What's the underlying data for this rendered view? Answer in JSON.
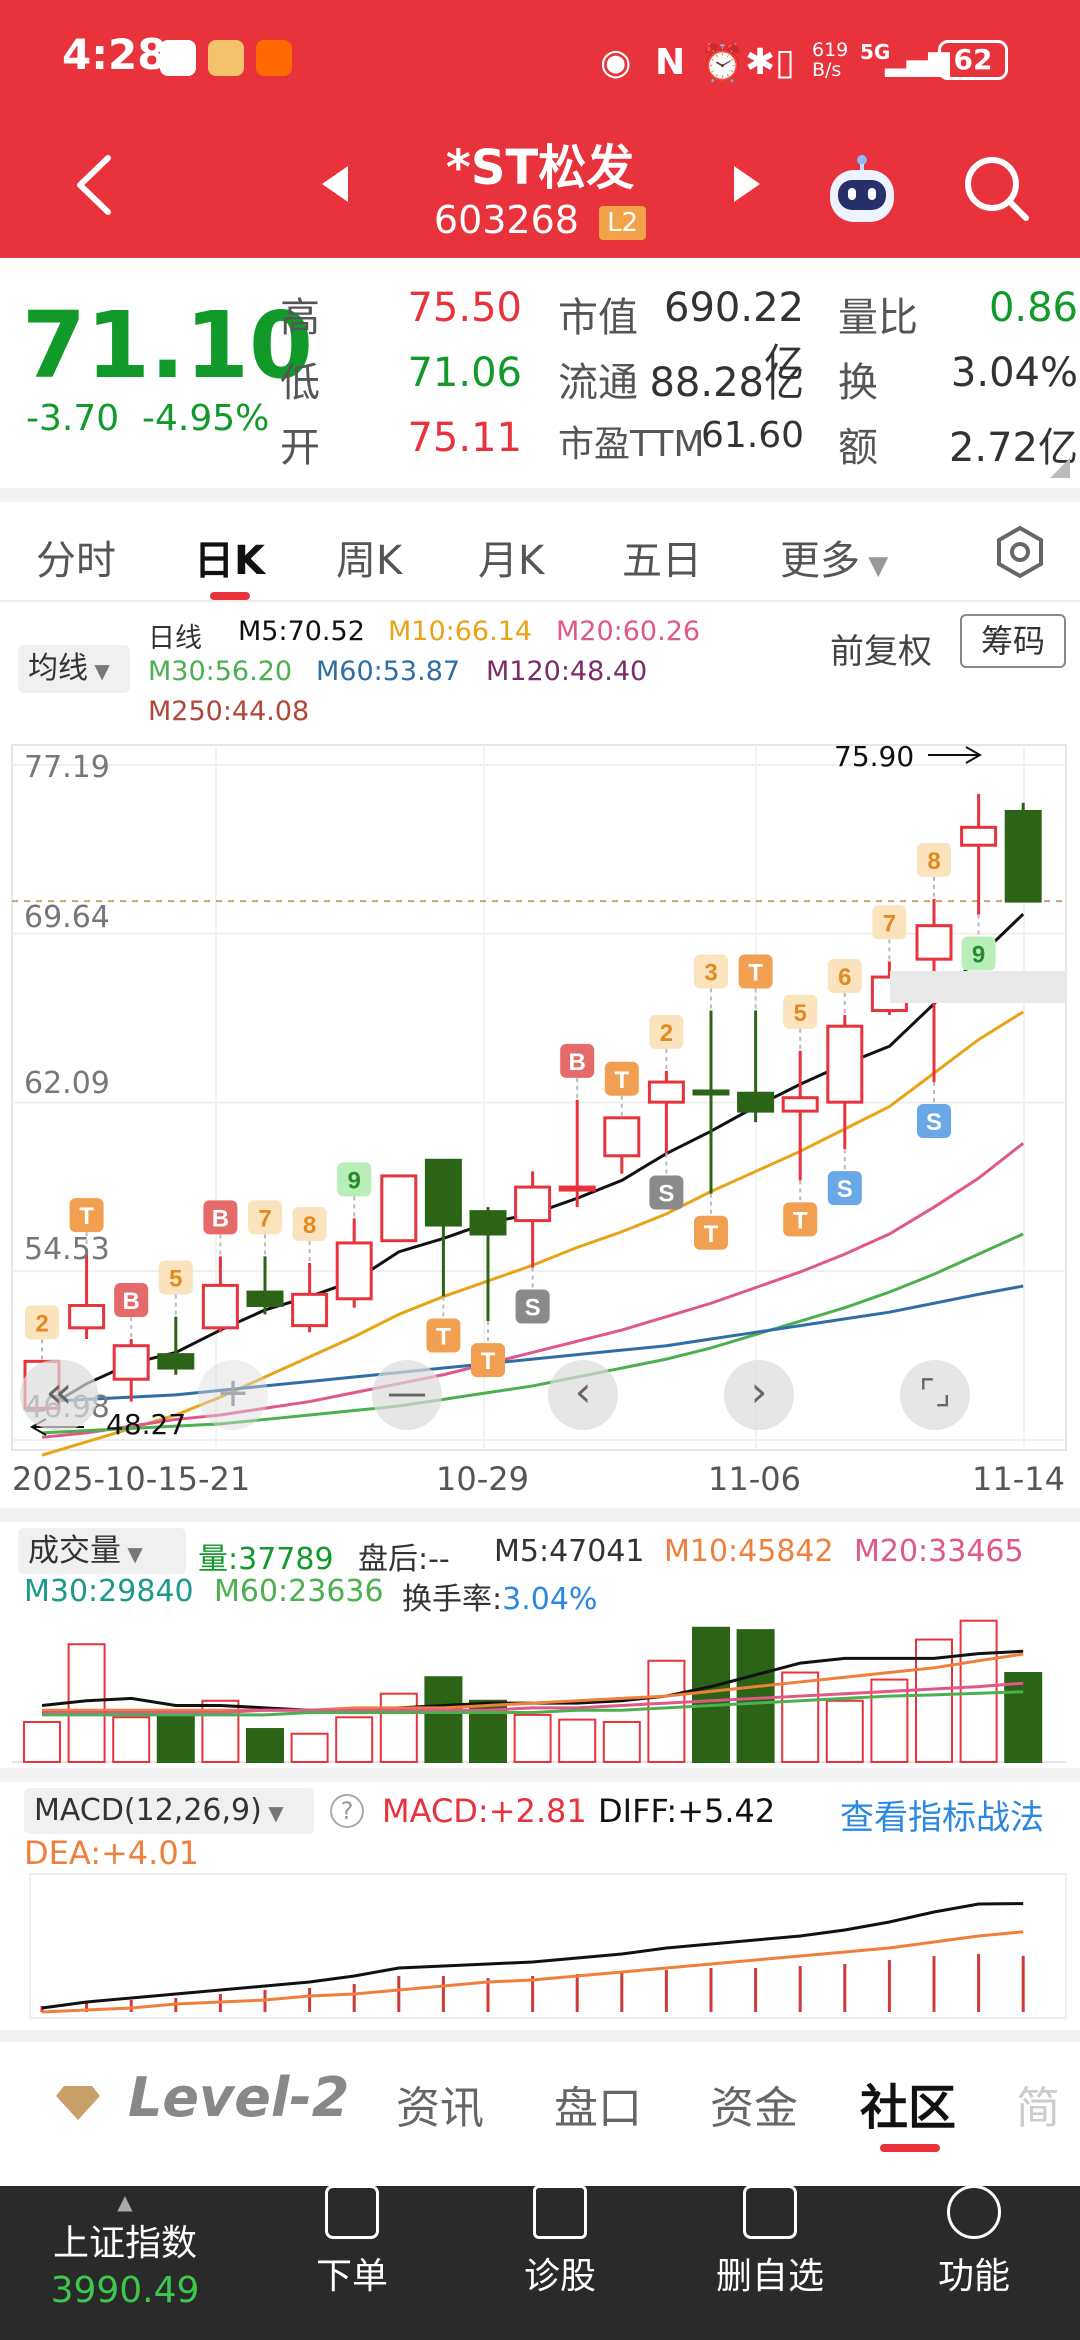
{
  "status_bar": {
    "time": "4:28",
    "net_speed_top": "619",
    "net_speed_bottom": "B/s",
    "network": "5G",
    "battery": "62"
  },
  "header": {
    "stock_name": "*ST松发",
    "stock_code": "603268",
    "level_badge": "L2",
    "colors": {
      "bg": "#e8323c"
    }
  },
  "quote": {
    "price": "71.10",
    "change": "-3.70",
    "change_pct": "-4.95%",
    "high_label": "高",
    "high": "75.50",
    "low_label": "低",
    "low": "71.06",
    "open_label": "开",
    "open": "75.11",
    "mktcap_label": "市值",
    "mktcap": "690.22亿",
    "float_label": "流通",
    "float": "88.28亿",
    "pe_label": "市盈TTM",
    "pe": "61.60",
    "vol_ratio_label": "量比",
    "vol_ratio": "0.86",
    "turnover_label": "换",
    "turnover": "3.04%",
    "amount_label": "额",
    "amount": "2.72亿"
  },
  "tabs": [
    "分时",
    "日K",
    "周K",
    "月K",
    "五日",
    "更多"
  ],
  "active_tab": "日K",
  "ma_legend": {
    "selector": "均线",
    "period": "日线",
    "m5": "M5:70.52",
    "m10": "M10:66.14",
    "m20": "M20:60.26",
    "m30": "M30:56.20",
    "m60": "M60:53.87",
    "m120": "M120:48.40",
    "m250": "M250:44.08",
    "adjust": "前复权",
    "chips": "筹码"
  },
  "chart_data": {
    "type": "candlestick",
    "y_ticks": [
      "77.19",
      "69.64",
      "62.09",
      "54.53",
      "46.98"
    ],
    "ylim": [
      46.98,
      77.19
    ],
    "x_ticks": [
      "2025-10-15-21",
      "10-29",
      "11-06",
      "11-14"
    ],
    "high_marker": "75.90",
    "low_marker": "48.27",
    "last_price_line": 71.1,
    "candles": [
      {
        "o": 48.4,
        "c": 50.5,
        "h": 50.5,
        "l": 48.27
      },
      {
        "o": 52.0,
        "c": 53.0,
        "h": 55.3,
        "l": 51.5
      },
      {
        "o": 49.7,
        "c": 51.2,
        "h": 51.5,
        "l": 48.7
      },
      {
        "o": 50.8,
        "c": 50.2,
        "h": 52.5,
        "l": 49.9
      },
      {
        "o": 52.0,
        "c": 53.9,
        "h": 55.2,
        "l": 51.8
      },
      {
        "o": 53.6,
        "c": 53.0,
        "h": 55.2,
        "l": 52.6
      },
      {
        "o": 52.1,
        "c": 53.5,
        "h": 54.9,
        "l": 51.8
      },
      {
        "o": 53.3,
        "c": 55.8,
        "h": 56.9,
        "l": 52.9
      },
      {
        "o": 55.9,
        "c": 58.8,
        "h": 58.8,
        "l": 55.9
      },
      {
        "o": 59.5,
        "c": 56.6,
        "h": 59.5,
        "l": 53.4
      },
      {
        "o": 57.2,
        "c": 56.2,
        "h": 57.4,
        "l": 52.3
      },
      {
        "o": 56.8,
        "c": 58.3,
        "h": 59.0,
        "l": 54.7
      },
      {
        "o": 58.3,
        "c": 58.3,
        "h": 62.2,
        "l": 57.4
      },
      {
        "o": 59.7,
        "c": 61.4,
        "h": 61.4,
        "l": 58.9
      },
      {
        "o": 62.1,
        "c": 63.0,
        "h": 63.5,
        "l": 59.8
      },
      {
        "o": 62.6,
        "c": 62.5,
        "h": 66.2,
        "l": 58.0
      },
      {
        "o": 62.5,
        "c": 61.7,
        "h": 66.2,
        "l": 61.2
      },
      {
        "o": 61.7,
        "c": 62.3,
        "h": 64.4,
        "l": 58.6
      },
      {
        "o": 62.1,
        "c": 65.5,
        "h": 66.0,
        "l": 60.0
      },
      {
        "o": 66.2,
        "c": 67.7,
        "h": 68.4,
        "l": 66.0
      },
      {
        "o": 68.5,
        "c": 70.0,
        "h": 71.2,
        "l": 63.0
      },
      {
        "o": 73.6,
        "c": 74.4,
        "h": 75.9,
        "l": 70.5
      },
      {
        "o": 75.11,
        "c": 71.1,
        "h": 75.5,
        "l": 71.06
      }
    ],
    "signals": [
      {
        "i": 0,
        "t": "2",
        "pos": "above"
      },
      {
        "i": 1,
        "t": "T",
        "pos": "above"
      },
      {
        "i": 2,
        "t": "B",
        "pos": "above"
      },
      {
        "i": 3,
        "t": "5",
        "pos": "above"
      },
      {
        "i": 4,
        "t": "B",
        "pos": "above"
      },
      {
        "i": 5,
        "t": "7",
        "pos": "above"
      },
      {
        "i": 6,
        "t": "8",
        "pos": "above"
      },
      {
        "i": 7,
        "t": "9",
        "pos": "above"
      },
      {
        "i": 9,
        "t": "T",
        "pos": "below"
      },
      {
        "i": 10,
        "t": "T",
        "pos": "below"
      },
      {
        "i": 11,
        "t": "S",
        "pos": "below"
      },
      {
        "i": 12,
        "t": "B",
        "pos": "above"
      },
      {
        "i": 13,
        "t": "T",
        "pos": "above"
      },
      {
        "i": 14,
        "t": "2",
        "pos": "above"
      },
      {
        "i": 14,
        "t": "S",
        "pos": "below"
      },
      {
        "i": 15,
        "t": "3",
        "pos": "above"
      },
      {
        "i": 15,
        "t": "T",
        "pos": "below"
      },
      {
        "i": 16,
        "t": "T",
        "pos": "above"
      },
      {
        "i": 17,
        "t": "5",
        "pos": "above"
      },
      {
        "i": 17,
        "t": "T",
        "pos": "below"
      },
      {
        "i": 18,
        "t": "6",
        "pos": "above"
      },
      {
        "i": 18,
        "t": "S",
        "pos": "below"
      },
      {
        "i": 19,
        "t": "7",
        "pos": "above"
      },
      {
        "i": 20,
        "t": "8",
        "pos": "above"
      },
      {
        "i": 20,
        "t": "S",
        "pos": "below"
      },
      {
        "i": 21,
        "t": "9",
        "pos": "below"
      }
    ],
    "ma_lines": [
      {
        "name": "M5",
        "color": "#111111",
        "values": [
          48.3,
          49.5,
          50.4,
          50.9,
          51.9,
          52.8,
          53.4,
          54.1,
          55.4,
          56.0,
          56.7,
          57.1,
          57.8,
          58.6,
          59.8,
          60.8,
          61.9,
          62.9,
          63.8,
          64.6,
          66.5,
          68.6,
          70.52
        ]
      },
      {
        "name": "M10",
        "color": "#e8a317",
        "values": [
          46.3,
          46.9,
          47.5,
          48.1,
          48.9,
          49.8,
          50.7,
          51.6,
          52.6,
          53.4,
          54.1,
          54.8,
          55.6,
          56.3,
          57.1,
          58.1,
          59.0,
          59.9,
          60.9,
          61.9,
          63.4,
          64.9,
          66.14
        ]
      },
      {
        "name": "M20",
        "color": "#e0578a",
        "values": [
          47.1,
          47.3,
          47.6,
          47.9,
          48.1,
          48.4,
          48.7,
          49.1,
          49.5,
          49.9,
          50.4,
          50.9,
          51.4,
          51.9,
          52.5,
          53.1,
          53.8,
          54.5,
          55.3,
          56.2,
          57.4,
          58.7,
          60.26
        ]
      },
      {
        "name": "M30",
        "color": "#4caf50",
        "values": [
          47.3,
          47.4,
          47.5,
          47.6,
          47.7,
          47.9,
          48.1,
          48.3,
          48.5,
          48.8,
          49.1,
          49.4,
          49.8,
          50.2,
          50.6,
          51.1,
          51.7,
          52.3,
          52.9,
          53.6,
          54.4,
          55.3,
          56.2
        ]
      },
      {
        "name": "M60",
        "color": "#2f6ea5",
        "values": [
          48.7,
          48.8,
          48.9,
          49.0,
          49.2,
          49.4,
          49.6,
          49.8,
          50.0,
          50.2,
          50.4,
          50.6,
          50.8,
          51.0,
          51.2,
          51.5,
          51.8,
          52.1,
          52.4,
          52.7,
          53.1,
          53.5,
          53.87
        ]
      }
    ],
    "volume": {
      "legend_selector": "成交量",
      "vol": "量:37789",
      "after_hours": "盘后:--",
      "m5": "M5:47041",
      "m10": "M10:45842",
      "m20": "M20:33465",
      "m30": "M30:29840",
      "m60": "M60:23636",
      "turnover_label": "换手率:",
      "turnover": "3.04%",
      "values": [
        17000,
        50000,
        19000,
        21000,
        26000,
        14000,
        12000,
        19000,
        29000,
        36000,
        26000,
        20000,
        18000,
        17000,
        43000,
        57000,
        56000,
        38000,
        26000,
        35000,
        52000,
        60000,
        37789
      ],
      "ma": [
        {
          "name": "M5",
          "color": "#111111",
          "values": [
            24000,
            26000,
            27000,
            24000,
            24000,
            23000,
            22000,
            22000,
            23000,
            24000,
            25000,
            25000,
            25000,
            26000,
            28000,
            32000,
            37000,
            42000,
            44000,
            44000,
            44000,
            46000,
            47041
          ]
        },
        {
          "name": "M10",
          "color": "#f07f3c",
          "values": [
            22000,
            22000,
            22000,
            22000,
            22000,
            22000,
            22000,
            23000,
            23000,
            23000,
            24000,
            25000,
            26000,
            27000,
            28000,
            30000,
            32000,
            34000,
            36000,
            38000,
            40000,
            43000,
            45842
          ]
        },
        {
          "name": "M20",
          "color": "#e0578a",
          "values": [
            21000,
            21000,
            21000,
            21000,
            21000,
            22000,
            22000,
            22000,
            22000,
            22000,
            22000,
            23000,
            23000,
            24000,
            25000,
            26000,
            27000,
            28000,
            29000,
            30000,
            31000,
            32000,
            33465
          ]
        },
        {
          "name": "M30",
          "color": "#4caf50",
          "values": [
            20000,
            20000,
            20000,
            20000,
            20000,
            20000,
            21000,
            21000,
            21000,
            21000,
            21000,
            21000,
            22000,
            22000,
            23000,
            24000,
            25000,
            26000,
            27000,
            28000,
            28500,
            29200,
            29840
          ]
        }
      ]
    },
    "macd": {
      "selector": "MACD(12,26,9)",
      "macd": "MACD:+2.81",
      "diff": "DIFF:+5.42",
      "dea": "DEA:+4.01",
      "strategy_link": "查看指标战法",
      "hist": [
        0.3,
        0.5,
        0.6,
        0.7,
        0.9,
        1.1,
        1.2,
        1.4,
        1.8,
        1.8,
        1.7,
        1.8,
        1.9,
        2.0,
        2.1,
        2.2,
        2.2,
        2.3,
        2.4,
        2.6,
        2.8,
        2.9,
        2.81
      ],
      "diff_line": [
        0.2,
        0.5,
        0.7,
        0.9,
        1.1,
        1.3,
        1.5,
        1.8,
        2.2,
        2.3,
        2.4,
        2.5,
        2.7,
        2.9,
        3.2,
        3.4,
        3.6,
        3.8,
        4.1,
        4.5,
        5.0,
        5.4,
        5.42
      ],
      "dea_line": [
        0.0,
        0.1,
        0.2,
        0.4,
        0.5,
        0.6,
        0.8,
        0.9,
        1.1,
        1.3,
        1.5,
        1.6,
        1.8,
        2.0,
        2.2,
        2.4,
        2.6,
        2.8,
        3.0,
        3.2,
        3.5,
        3.8,
        4.01
      ]
    }
  },
  "bottom_tabs": [
    "Level-2",
    "资讯",
    "盘口",
    "资金",
    "社区",
    "简"
  ],
  "active_bottom_tab": "社区",
  "bottom_nav": {
    "index_name": "上证指数",
    "index_value": "3990.49",
    "items": [
      "下单",
      "诊股",
      "删自选",
      "功能"
    ]
  }
}
